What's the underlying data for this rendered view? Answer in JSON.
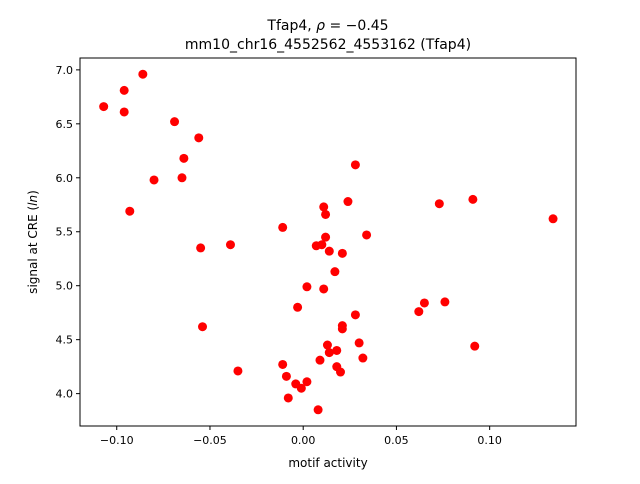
{
  "chart_data": {
    "type": "scatter",
    "title_line1_prefix": "Tfap4, ",
    "title_rho_symbol": "ρ",
    "title_line1_suffix": " = −0.45",
    "title_line2": "mm10_chr16_4552562_4553162 (Tfap4)",
    "xlabel": "motif activity",
    "ylabel_prefix": "signal at CRE (",
    "ylabel_italic": "ln",
    "ylabel_suffix": ")",
    "xlim": [
      -0.1197,
      0.1463
    ],
    "ylim": [
      3.7,
      7.11
    ],
    "xticks": [
      -0.1,
      -0.05,
      0.0,
      0.05,
      0.1
    ],
    "xtick_labels": [
      "−0.10",
      "−0.05",
      "0.00",
      "0.05",
      "0.10"
    ],
    "yticks": [
      4.0,
      4.5,
      5.0,
      5.5,
      6.0,
      6.5,
      7.0
    ],
    "ytick_labels": [
      "4.0",
      "4.5",
      "5.0",
      "5.5",
      "6.0",
      "6.5",
      "7.0"
    ],
    "grid": false,
    "marker_color": "#ff0000",
    "points": [
      [
        -0.107,
        6.66
      ],
      [
        -0.086,
        6.96
      ],
      [
        -0.096,
        6.81
      ],
      [
        -0.096,
        6.61
      ],
      [
        -0.069,
        6.52
      ],
      [
        -0.056,
        6.37
      ],
      [
        -0.064,
        6.18
      ],
      [
        -0.065,
        6.0
      ],
      [
        -0.08,
        5.98
      ],
      [
        -0.093,
        5.69
      ],
      [
        -0.055,
        5.35
      ],
      [
        -0.039,
        5.38
      ],
      [
        -0.054,
        4.62
      ],
      [
        -0.035,
        4.21
      ],
      [
        -0.011,
        5.54
      ],
      [
        0.028,
        6.12
      ],
      [
        0.024,
        5.78
      ],
      [
        0.011,
        5.73
      ],
      [
        0.012,
        5.66
      ],
      [
        0.034,
        5.47
      ],
      [
        0.012,
        5.45
      ],
      [
        0.007,
        5.37
      ],
      [
        0.01,
        5.38
      ],
      [
        0.014,
        5.32
      ],
      [
        0.021,
        5.3
      ],
      [
        0.017,
        5.13
      ],
      [
        0.002,
        4.99
      ],
      [
        0.011,
        4.97
      ],
      [
        -0.003,
        4.8
      ],
      [
        0.028,
        4.73
      ],
      [
        0.021,
        4.63
      ],
      [
        0.021,
        4.6
      ],
      [
        0.03,
        4.47
      ],
      [
        0.013,
        4.45
      ],
      [
        0.014,
        4.38
      ],
      [
        0.018,
        4.4
      ],
      [
        0.009,
        4.31
      ],
      [
        0.032,
        4.33
      ],
      [
        -0.011,
        4.27
      ],
      [
        0.018,
        4.25
      ],
      [
        0.02,
        4.2
      ],
      [
        -0.009,
        4.16
      ],
      [
        -0.004,
        4.09
      ],
      [
        0.002,
        4.11
      ],
      [
        -0.001,
        4.05
      ],
      [
        -0.008,
        3.96
      ],
      [
        0.008,
        3.85
      ],
      [
        0.073,
        5.76
      ],
      [
        0.091,
        5.8
      ],
      [
        0.134,
        5.62
      ],
      [
        0.062,
        4.76
      ],
      [
        0.065,
        4.84
      ],
      [
        0.076,
        4.85
      ],
      [
        0.092,
        4.44
      ]
    ]
  }
}
